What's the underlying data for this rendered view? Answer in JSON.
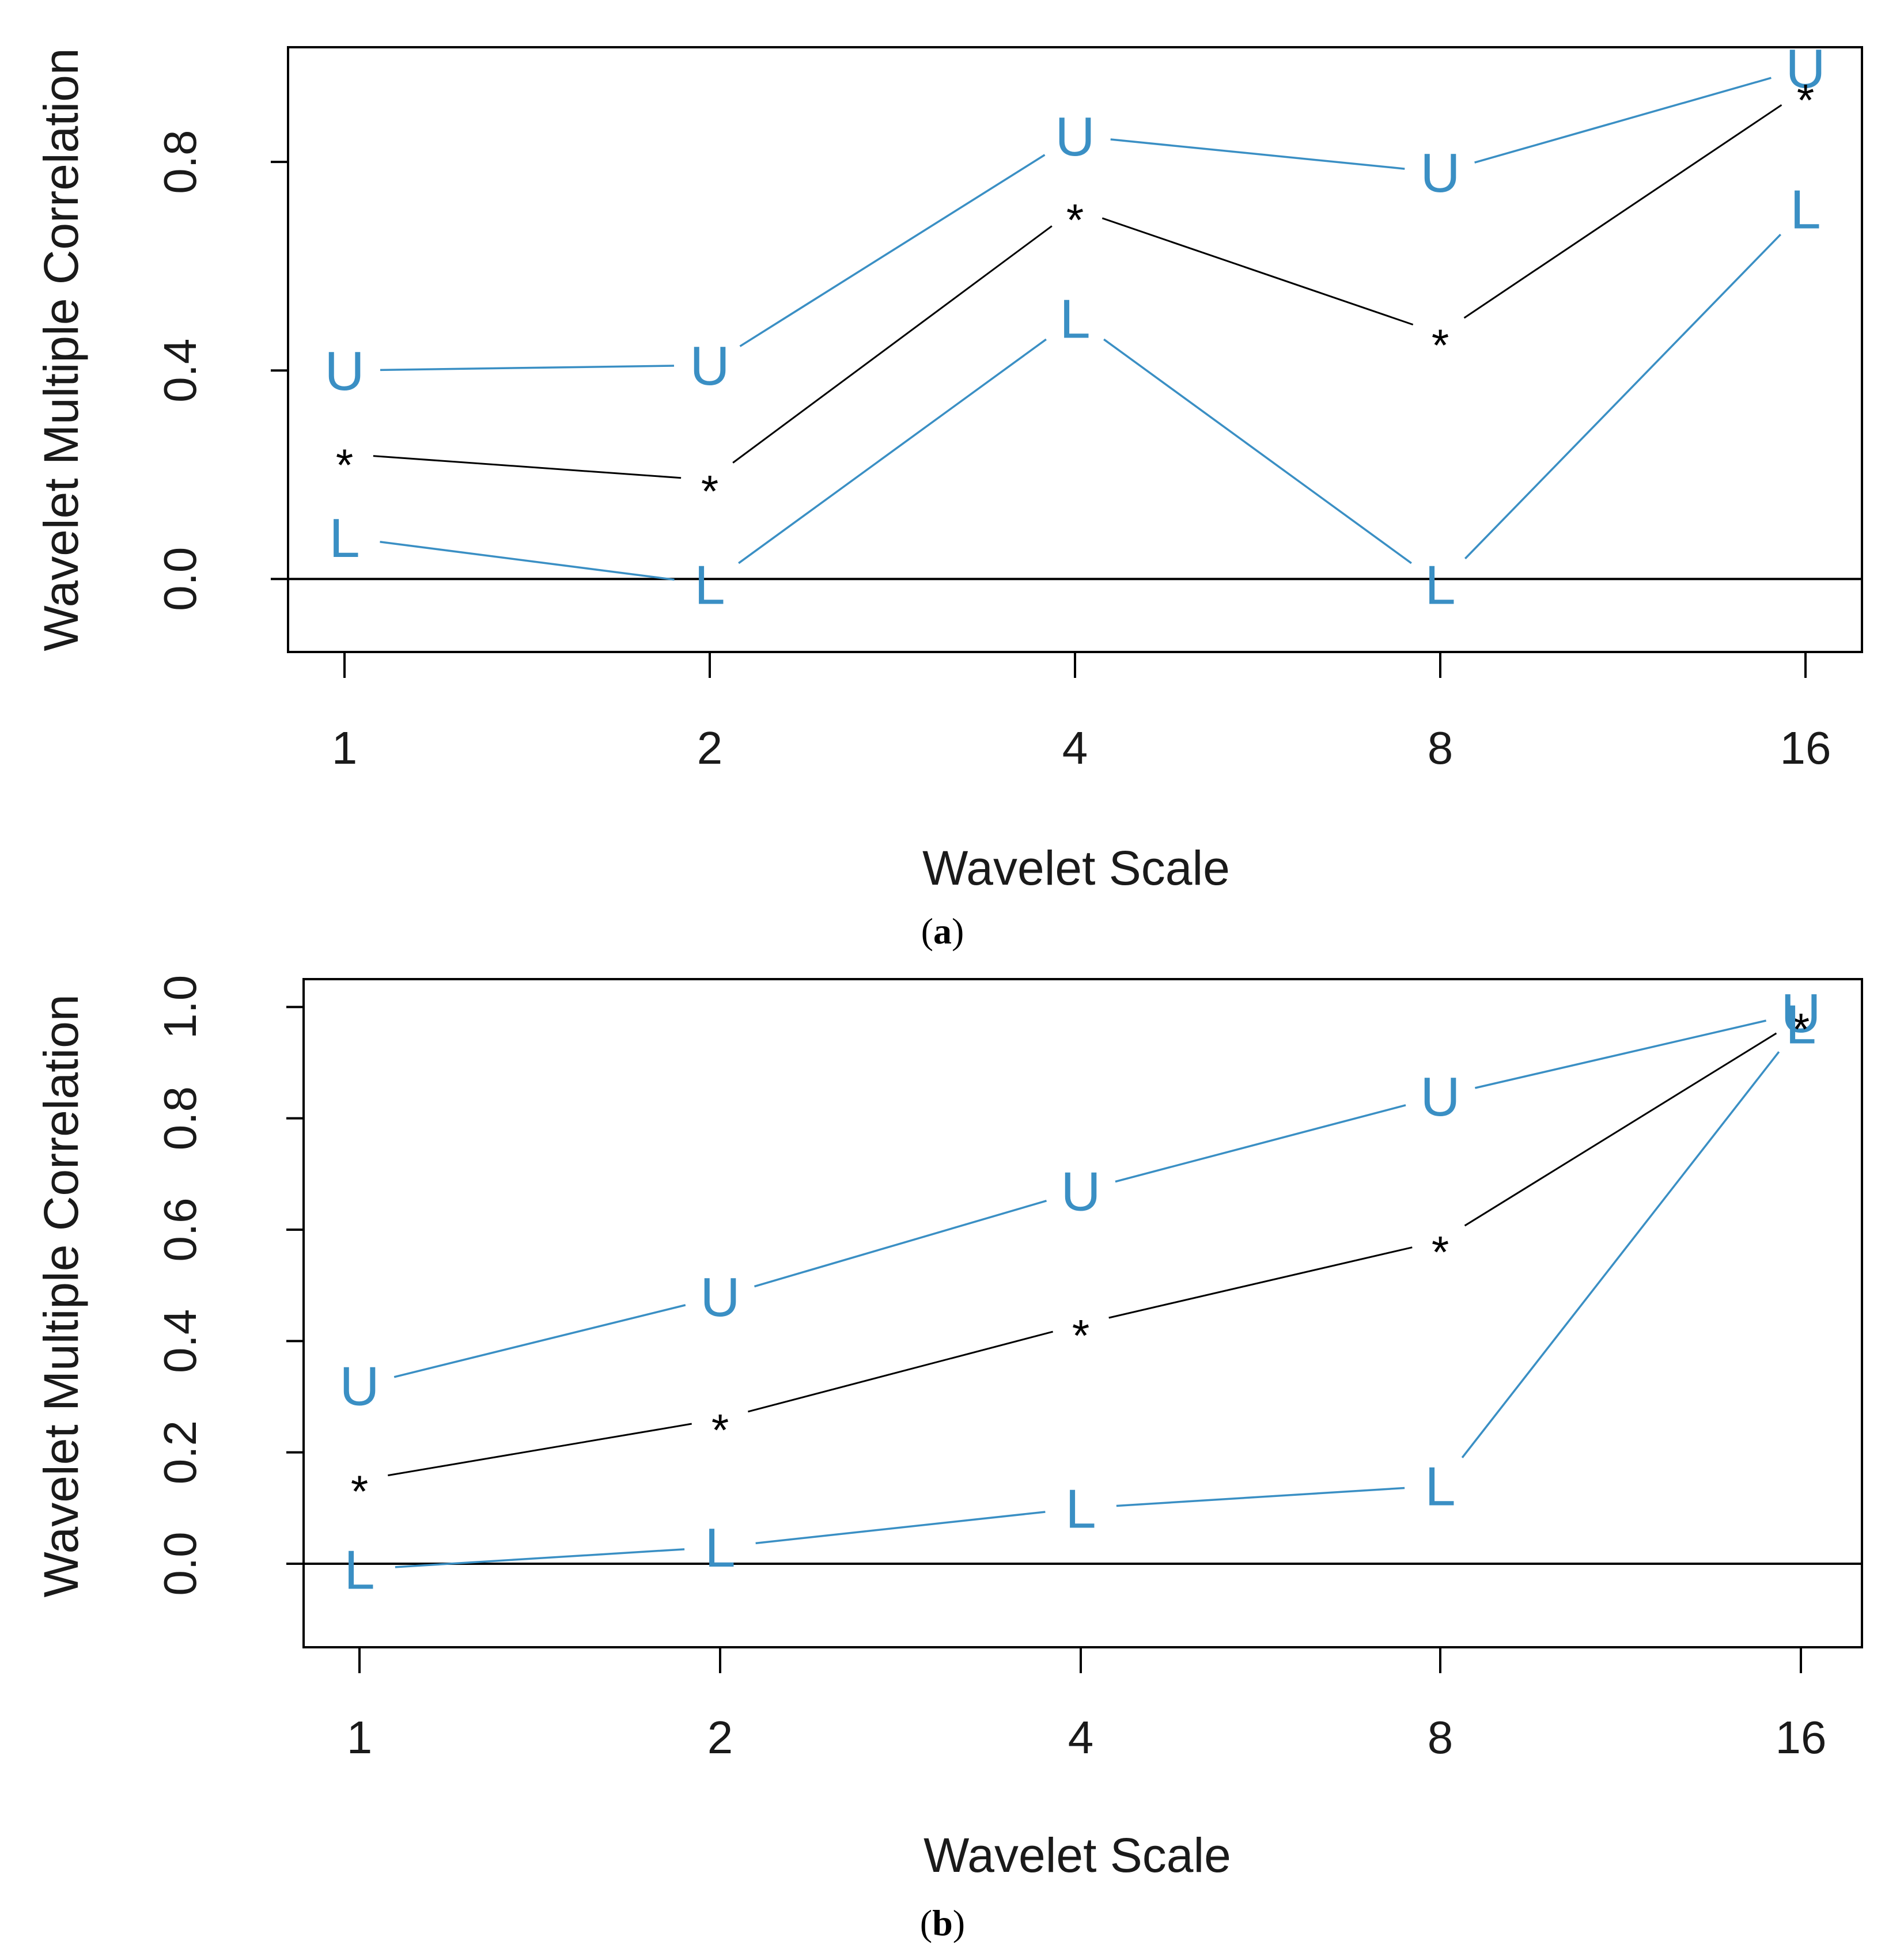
{
  "colors": {
    "bounds": "#3a8fc4",
    "estimate": "#000000"
  },
  "chart_data": [
    {
      "type": "line",
      "caption_letter": "a",
      "x": [
        1,
        2,
        4,
        8,
        16
      ],
      "xlabel": "Wavelet Scale",
      "ylabel": "Wavelet Multiple Correlation",
      "xtick_labels": [
        "1",
        "2",
        "4",
        "8",
        "16"
      ],
      "yticks": [
        0.0,
        0.4,
        0.8
      ],
      "ytick_labels": [
        "0.0",
        "0.4",
        "0.8"
      ],
      "ylim": [
        -0.14,
        1.02
      ],
      "reference_line": 0,
      "series": [
        {
          "name": "upper",
          "marker": "U",
          "values": [
            0.4,
            0.41,
            0.85,
            0.78,
            0.98
          ]
        },
        {
          "name": "estimate",
          "marker": "*",
          "values": [
            0.24,
            0.19,
            0.71,
            0.47,
            0.94
          ]
        },
        {
          "name": "lower",
          "marker": "L",
          "values": [
            0.08,
            -0.01,
            0.5,
            -0.01,
            0.71
          ]
        }
      ]
    },
    {
      "type": "line",
      "caption_letter": "b",
      "x": [
        1,
        2,
        4,
        8,
        16
      ],
      "xlabel": "Wavelet Scale",
      "ylabel": "Wavelet Multiple Correlation",
      "xtick_labels": [
        "1",
        "2",
        "4",
        "8",
        "16"
      ],
      "yticks": [
        0.0,
        0.2,
        0.4,
        0.6,
        0.8,
        1.0
      ],
      "ytick_labels": [
        "0.0",
        "0.2",
        "0.4",
        "0.6",
        "0.8",
        "1.0"
      ],
      "ylim": [
        -0.15,
        1.05
      ],
      "reference_line": 0,
      "series": [
        {
          "name": "upper",
          "marker": "U",
          "values": [
            0.32,
            0.48,
            0.67,
            0.84,
            0.99
          ]
        },
        {
          "name": "estimate",
          "marker": "*",
          "values": [
            0.15,
            0.26,
            0.43,
            0.58,
            0.98
          ]
        },
        {
          "name": "lower",
          "marker": "L",
          "values": [
            -0.01,
            0.03,
            0.1,
            0.14,
            0.97
          ]
        }
      ]
    }
  ]
}
